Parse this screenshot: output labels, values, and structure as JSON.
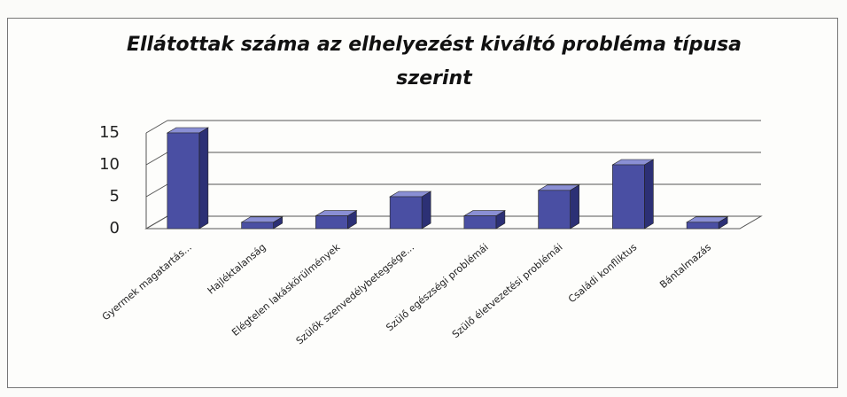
{
  "chart_data": {
    "type": "bar3d",
    "title": "Ellátottak száma az elhelyezést kiváltó probléma típusa szerint",
    "categories": [
      "Gyermek magatartás...",
      "Hajléktalanság",
      "Elégtelen lakáskörülmények",
      "Szülők szenvedélybetegsége...",
      "Szülő egészségi problémái",
      "Szülő életvezetési problémái",
      "Családi konfliktus",
      "Bántalmazás"
    ],
    "values": [
      15,
      1,
      2,
      5,
      2,
      6,
      10,
      1
    ],
    "color": "#4a4fa3",
    "ylim": [
      0,
      15
    ],
    "yticks": [
      0,
      5,
      10,
      15
    ],
    "grid": true
  }
}
